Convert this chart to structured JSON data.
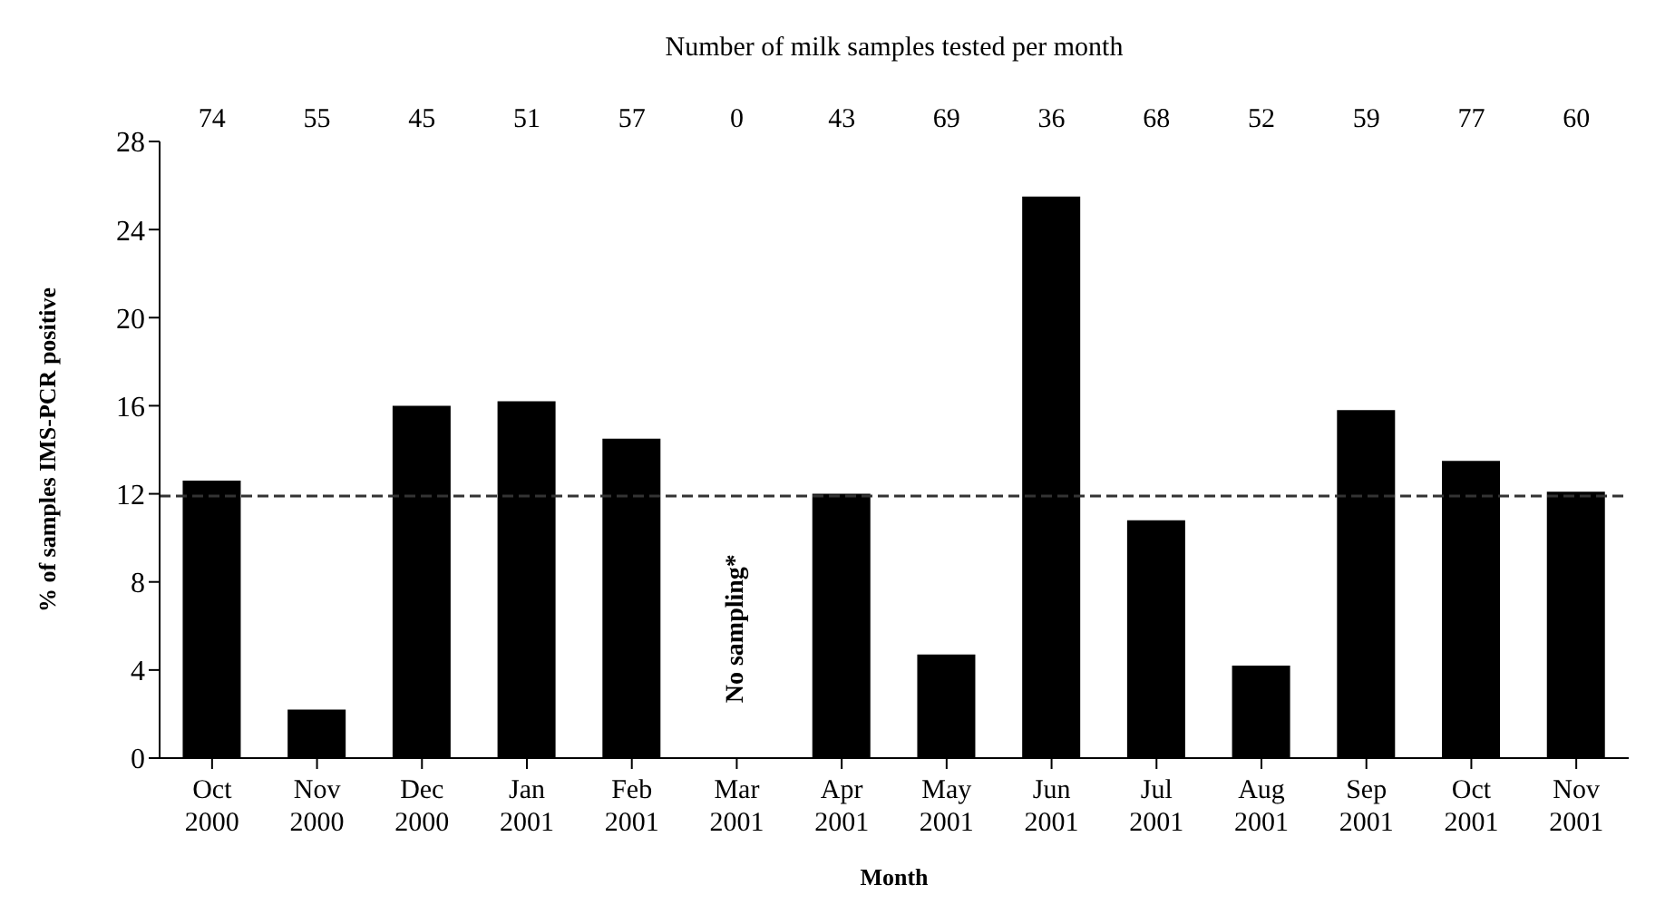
{
  "chart_data": {
    "type": "bar",
    "xlabel": "Month",
    "ylabel": "% of samples IMS-PCR positive",
    "x2label": "Number of milk samples tested per month",
    "categories": [
      "Oct 2000",
      "Nov 2000",
      "Dec 2000",
      "Jan 2001",
      "Feb 2001",
      "Mar 2001",
      "Apr 2001",
      "May 2001",
      "Jun 2001",
      "Jul 2001",
      "Aug 2001",
      "Sep 2001",
      "Oct 2001",
      "Nov 2001"
    ],
    "values": [
      12.6,
      2.2,
      16.0,
      16.2,
      14.5,
      null,
      12.0,
      4.7,
      25.5,
      10.8,
      4.2,
      15.8,
      13.5,
      12.1
    ],
    "color": "#000000",
    "ylim": [
      0,
      28
    ],
    "yticks": [
      0,
      4,
      8,
      12,
      16,
      20,
      24,
      28
    ],
    "grid": false,
    "ref_lines": [
      {
        "axis": "y",
        "value": 11.9,
        "color": "#333333",
        "line_style": "dashed"
      }
    ],
    "annotations": [
      "74",
      "55",
      "45",
      "51",
      "57",
      "0",
      "43",
      "69",
      "36",
      "68",
      "52",
      "59",
      "77",
      "60",
      "No sampling*"
    ]
  }
}
